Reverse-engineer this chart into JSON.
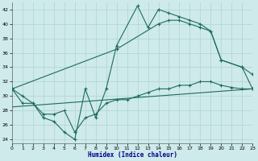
{
  "xlabel": "Humidex (Indice chaleur)",
  "bg_color": "#ceeaea",
  "line_color": "#1e6b5e",
  "grid_color": "#afd4d4",
  "xlim": [
    0,
    23
  ],
  "ylim": [
    23.5,
    43
  ],
  "yticks": [
    24,
    26,
    28,
    30,
    32,
    34,
    36,
    38,
    40,
    42
  ],
  "xticks": [
    0,
    1,
    2,
    3,
    4,
    5,
    6,
    7,
    8,
    9,
    10,
    11,
    12,
    13,
    14,
    15,
    16,
    17,
    18,
    19,
    20,
    21,
    22,
    23
  ],
  "line1_x": [
    0,
    1,
    2,
    3,
    4,
    5,
    6,
    7,
    8,
    9,
    10,
    12,
    13,
    14,
    15,
    16,
    17,
    18,
    19,
    20,
    22,
    23
  ],
  "line1_y": [
    31,
    29,
    29,
    27,
    26.5,
    25,
    24,
    31,
    27,
    31,
    37,
    42.5,
    39.5,
    42,
    41.5,
    41,
    40.5,
    40,
    39,
    35,
    34,
    33
  ],
  "line2_x": [
    0,
    10,
    14,
    15,
    16,
    17,
    18,
    19,
    20,
    22,
    23
  ],
  "line2_y": [
    31,
    36.5,
    40,
    40.5,
    40.5,
    40,
    39.5,
    39,
    35,
    34,
    31
  ],
  "line3_x": [
    0,
    1,
    2,
    3,
    4,
    5,
    6,
    7,
    8,
    9,
    10,
    11,
    12,
    13,
    14,
    15,
    16,
    17,
    18,
    19,
    20,
    21,
    22,
    23
  ],
  "line3_y": [
    31,
    30,
    29,
    27.5,
    27.5,
    28,
    25,
    27,
    27.5,
    29,
    29.5,
    29.5,
    30,
    30.5,
    31,
    31,
    31.5,
    31.5,
    32,
    32,
    31.5,
    31.2,
    31,
    31
  ],
  "line4_x": [
    0,
    23
  ],
  "line4_y": [
    28.5,
    31
  ]
}
